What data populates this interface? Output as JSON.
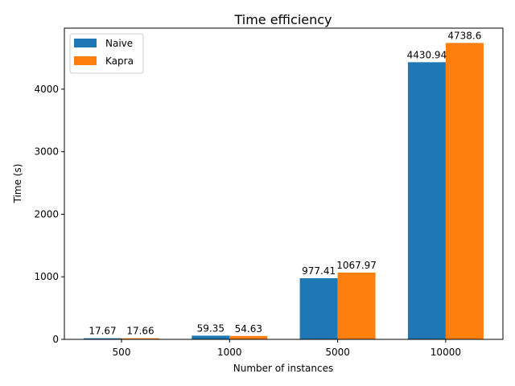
{
  "chart_data": {
    "type": "bar",
    "title": "Time efficiency",
    "xlabel": "Number of instances",
    "ylabel": "Time (s)",
    "categories": [
      "500",
      "1000",
      "5000",
      "10000"
    ],
    "series": [
      {
        "name": "Naive",
        "color": "#1f77b4",
        "values": [
          17.67,
          59.35,
          977.41,
          4430.94
        ],
        "labels": [
          "17.67",
          "59.35",
          "977.41",
          "4430.94"
        ]
      },
      {
        "name": "Kapra",
        "color": "#ff7f0e",
        "values": [
          17.66,
          54.63,
          1067.97,
          4738.6
        ],
        "labels": [
          "17.66",
          "54.63",
          "1067.97",
          "4738.6"
        ]
      }
    ],
    "ylim": [
      0,
      4975.53
    ],
    "yticks": [
      0,
      1000,
      2000,
      3000,
      4000
    ],
    "ytick_labels": [
      "0",
      "1000",
      "2000",
      "3000",
      "4000"
    ],
    "grid": false,
    "legend_position": "top-left"
  }
}
